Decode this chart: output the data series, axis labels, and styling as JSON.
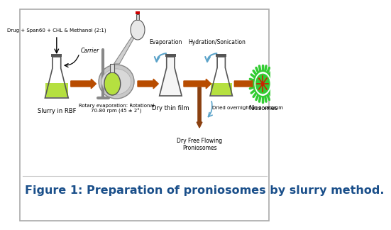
{
  "title": "Figure 1: Preparation of proniosomes by slurry method.",
  "title_color": "#1a4f8a",
  "title_fontsize": 11.5,
  "bg_color": "#ffffff",
  "border_color": "#aaaaaa",
  "top_label": "Drug + Span60 + CHL & Methanol (2:1)",
  "carrier_label": "Carrier",
  "step1_label": "Slurry in RBF",
  "step2_label": "Rotary evaporation: Rotational\n70-80 rpm (45 ± 2°)",
  "step3_label": "Dry thin film",
  "step4_label": "Niosomes",
  "evaporation_label": "Evaporation",
  "hydration_label": "Hydration/Sonication",
  "dried_label": "Dried overnight in a vacuum",
  "dry_free_label": "Dry Free Flowing\nProniosomes",
  "flask_fill_color": "#b5e040",
  "flask_outline_color": "#555555",
  "arrow_color": "#b84c00",
  "blue_arrow_color": "#5ba3c9",
  "niosome_outer_color": "#33cc33",
  "niosome_inner_color": "#cc2200",
  "niosome_spoke_color": "#cc2200",
  "brown_arrow_color": "#8B4010"
}
